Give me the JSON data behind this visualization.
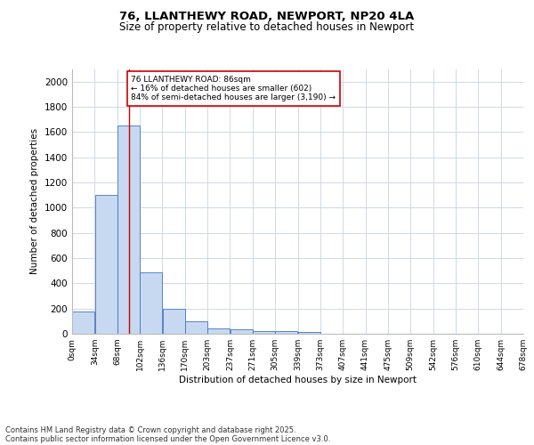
{
  "title1": "76, LLANTHEWY ROAD, NEWPORT, NP20 4LA",
  "title2": "Size of property relative to detached houses in Newport",
  "xlabel": "Distribution of detached houses by size in Newport",
  "ylabel": "Number of detached properties",
  "bar_values": [
    175,
    1100,
    1650,
    490,
    200,
    100,
    42,
    35,
    22,
    22,
    12,
    0,
    0,
    0,
    0,
    0,
    0,
    0,
    0,
    0
  ],
  "bin_labels": [
    "0sqm",
    "34sqm",
    "68sqm",
    "102sqm",
    "136sqm",
    "170sqm",
    "203sqm",
    "237sqm",
    "271sqm",
    "305sqm",
    "339sqm",
    "373sqm",
    "407sqm",
    "441sqm",
    "475sqm",
    "509sqm",
    "542sqm",
    "576sqm",
    "610sqm",
    "644sqm",
    "678sqm"
  ],
  "bar_color": "#c6d9f0",
  "bar_edge_color": "#4472c4",
  "grid_color": "#d0d8e8",
  "vline_color": "#cc0000",
  "property_size": 86,
  "annotation_text": "76 LLANTHEWY ROAD: 86sqm\n← 16% of detached houses are smaller (602)\n84% of semi-detached houses are larger (3,190) →",
  "annotation_box_color": "#ffffff",
  "annotation_box_edge": "#cc0000",
  "ylim": [
    0,
    2100
  ],
  "yticks": [
    0,
    200,
    400,
    600,
    800,
    1000,
    1200,
    1400,
    1600,
    1800,
    2000
  ],
  "footer1": "Contains HM Land Registry data © Crown copyright and database right 2025.",
  "footer2": "Contains public sector information licensed under the Open Government Licence v3.0.",
  "bin_width": 34
}
